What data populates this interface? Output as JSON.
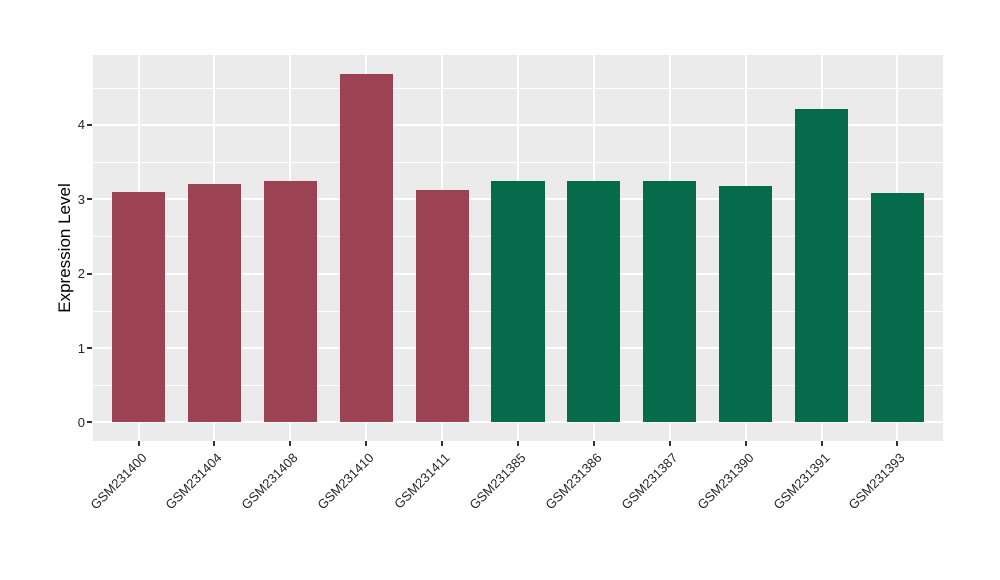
{
  "chart_data": {
    "type": "bar",
    "title": "",
    "xlabel": "",
    "ylabel": "Expression Level",
    "categories": [
      "GSM231400",
      "GSM231404",
      "GSM231408",
      "GSM231410",
      "GSM231411",
      "GSM231385",
      "GSM231386",
      "GSM231387",
      "GSM231390",
      "GSM231391",
      "GSM231393"
    ],
    "values": [
      3.1,
      3.2,
      3.24,
      4.68,
      3.13,
      3.24,
      3.24,
      3.24,
      3.18,
      4.21,
      3.09
    ],
    "bar_groups": [
      "maroon",
      "maroon",
      "maroon",
      "maroon",
      "maroon",
      "green",
      "green",
      "green",
      "green",
      "green",
      "green"
    ],
    "group_colors": {
      "maroon": "#9C4353",
      "green": "#056B4A"
    },
    "yticks": [
      0,
      1,
      2,
      3,
      4
    ],
    "ytick_labels": [
      "0",
      "1",
      "2",
      "3",
      "4"
    ],
    "minor_yticks": [
      0.5,
      1.5,
      2.5,
      3.5,
      4.5
    ],
    "ylim": [
      -0.25,
      4.94
    ],
    "bar_width_fraction": 0.7,
    "grid_on": true,
    "legend_position": "none",
    "panel_bg_color": "#EBEBEB",
    "grid_color": "#FFFFFF",
    "axis_text_color": "#262626",
    "tick_mark_color": "#333333"
  }
}
